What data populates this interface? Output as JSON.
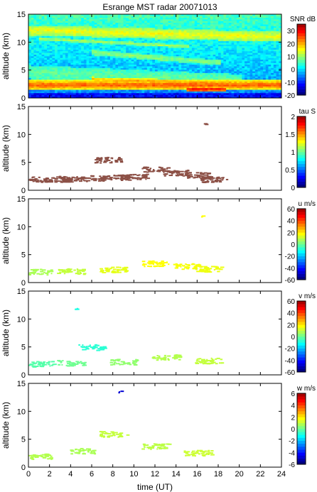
{
  "title": "Esrange MST radar 20071013",
  "chart_data": {
    "type": "heatmap",
    "title": "Esrange MST radar 20071013",
    "xlabel": "time (UT)",
    "xlim": [
      0,
      24
    ],
    "xticks": [
      0,
      2,
      4,
      6,
      8,
      10,
      12,
      14,
      16,
      18,
      20,
      22,
      24
    ],
    "panels": [
      {
        "id": "snr",
        "ylabel": "altitude (km)",
        "ylim": [
          0,
          15
        ],
        "yticks": [
          0,
          5,
          10,
          15
        ],
        "colorbar": {
          "label": "SNR dB",
          "range": [
            -20,
            35
          ],
          "ticks": [
            -20,
            -10,
            0,
            10,
            20,
            30
          ]
        },
        "palette": "jet",
        "coverage": "full",
        "layers": [
          {
            "alt_center": 12.0,
            "alt_halfwidth": 0.9,
            "t_start": 0,
            "t_end": 24,
            "value": 14,
            "slope": -0.05
          },
          {
            "alt_center": 10.5,
            "alt_halfwidth": 0.3,
            "t_start": 1,
            "t_end": 15,
            "value": 10,
            "slope": -0.1
          },
          {
            "alt_center": 8.0,
            "alt_halfwidth": 0.5,
            "t_start": 6,
            "t_end": 18,
            "value": 8,
            "slope": -0.15
          },
          {
            "alt_center": 4.5,
            "alt_halfwidth": 1.2,
            "t_start": 0,
            "t_end": 20,
            "value": 6,
            "slope": -0.08
          },
          {
            "alt_center": 2.2,
            "alt_halfwidth": 0.8,
            "t_start": 0,
            "t_end": 24,
            "value": 24,
            "slope": 0
          },
          {
            "alt_center": 3.2,
            "alt_halfwidth": 0.4,
            "t_start": 6,
            "t_end": 19,
            "value": 20,
            "slope": -0.05
          },
          {
            "alt_center": 1.4,
            "alt_halfwidth": 0.3,
            "t_start": 15,
            "t_end": 18.5,
            "value": 31,
            "slope": 0
          }
        ]
      },
      {
        "id": "tau",
        "ylabel": "altitude (km)",
        "ylim": [
          0,
          15
        ],
        "yticks": [
          0,
          5,
          10,
          15
        ],
        "colorbar": {
          "label": "tau S",
          "range": [
            0,
            2
          ],
          "ticks": [
            0,
            0.5,
            1,
            1.5,
            2
          ]
        },
        "palette": "jet",
        "coverage": "sparse",
        "points": [
          {
            "t": 0.5,
            "alt": 2.0,
            "value": 1.95
          },
          {
            "t": 2.5,
            "alt": 2.0,
            "value": 1.95
          },
          {
            "t": 4.0,
            "alt": 2.1,
            "value": 1.95
          },
          {
            "t": 6.0,
            "alt": 2.2,
            "value": 1.95
          },
          {
            "t": 7.5,
            "alt": 5.5,
            "value": 1.95
          },
          {
            "t": 8.5,
            "alt": 2.4,
            "value": 1.95
          },
          {
            "t": 10.0,
            "alt": 2.5,
            "value": 1.95
          },
          {
            "t": 12.0,
            "alt": 3.8,
            "value": 1.95
          },
          {
            "t": 14.0,
            "alt": 3.2,
            "value": 1.95
          },
          {
            "t": 16.0,
            "alt": 2.8,
            "value": 1.95
          },
          {
            "t": 17.5,
            "alt": 2.0,
            "value": 1.95
          },
          {
            "t": 16.6,
            "alt": 12.0,
            "value": 1.95
          }
        ]
      },
      {
        "id": "u",
        "ylabel": "altitude (km)",
        "ylim": [
          0,
          15
        ],
        "yticks": [
          0,
          5,
          10,
          15
        ],
        "colorbar": {
          "label": "u m/s",
          "range": [
            -60,
            60
          ],
          "ticks": [
            -60,
            -40,
            -20,
            0,
            20,
            40,
            60
          ]
        },
        "palette": "jet",
        "coverage": "sparse",
        "points": [
          {
            "t": 1.0,
            "alt": 2.0,
            "value": 5
          },
          {
            "t": 4.0,
            "alt": 2.1,
            "value": 8
          },
          {
            "t": 8.0,
            "alt": 2.4,
            "value": 12
          },
          {
            "t": 12.0,
            "alt": 3.5,
            "value": 15
          },
          {
            "t": 15.0,
            "alt": 3.0,
            "value": 14
          },
          {
            "t": 17.0,
            "alt": 2.5,
            "value": 13
          },
          {
            "t": 16.5,
            "alt": 12.0,
            "value": 15
          }
        ]
      },
      {
        "id": "v",
        "ylabel": "altitude (km)",
        "ylim": [
          0,
          15
        ],
        "yticks": [
          0,
          5,
          10,
          15
        ],
        "colorbar": {
          "label": "v m/s",
          "range": [
            -60,
            60
          ],
          "ticks": [
            -60,
            -40,
            -20,
            0,
            20,
            40,
            60
          ]
        },
        "palette": "jet",
        "coverage": "sparse",
        "points": [
          {
            "t": 1.0,
            "alt": 2.0,
            "value": -5
          },
          {
            "t": 4.0,
            "alt": 2.2,
            "value": -2
          },
          {
            "t": 6.0,
            "alt": 5.0,
            "value": -10
          },
          {
            "t": 9.0,
            "alt": 2.4,
            "value": 2
          },
          {
            "t": 13.0,
            "alt": 3.2,
            "value": 6
          },
          {
            "t": 17.0,
            "alt": 2.6,
            "value": 8
          },
          {
            "t": 4.5,
            "alt": 12.0,
            "value": -12
          }
        ]
      },
      {
        "id": "w",
        "ylabel": "altitude (km)",
        "ylim": [
          0,
          15
        ],
        "yticks": [
          0,
          5,
          10,
          15
        ],
        "colorbar": {
          "label": "w m/s",
          "range": [
            -6,
            6
          ],
          "ticks": [
            -6,
            -4,
            -2,
            0,
            2,
            4,
            6
          ]
        },
        "palette": "jet",
        "coverage": "sparse",
        "points": [
          {
            "t": 1.0,
            "alt": 2.0,
            "value": 0.6
          },
          {
            "t": 5.0,
            "alt": 3.0,
            "value": 0.5
          },
          {
            "t": 8.0,
            "alt": 6.0,
            "value": 0.8
          },
          {
            "t": 12.0,
            "alt": 3.8,
            "value": 0.7
          },
          {
            "t": 16.0,
            "alt": 2.6,
            "value": 0.9
          },
          {
            "t": 8.6,
            "alt": 13.6,
            "value": -5
          }
        ]
      }
    ]
  }
}
